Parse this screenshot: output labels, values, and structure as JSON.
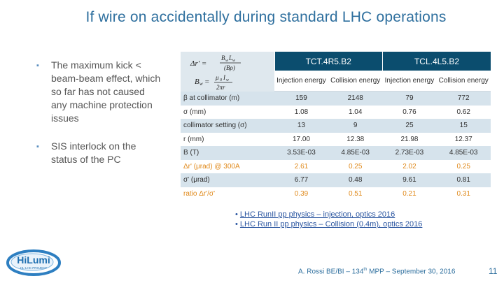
{
  "title": "If wire on accidentally during standard LHC operations",
  "bullets": [
    "The maximum kick < beam-beam effect, which so far has not caused any machine protection issues",
    "SIS interlock on the status of the PC"
  ],
  "formula_text": "Δr' = B_w L_w / (Bρ)   ;   B_w = μ0 I_w / (2πr)",
  "table": {
    "group_headers": [
      "TCT.4R5.B2",
      "TCL.4L5.B2"
    ],
    "sub_headers": [
      "Injection energy",
      "Collision energy",
      "Injection energy",
      "Collision energy"
    ],
    "rows": [
      {
        "label": "β at collimator (m)",
        "values": [
          "159",
          "2148",
          "79",
          "772"
        ]
      },
      {
        "label": "σ (mm)",
        "values": [
          "1.08",
          "1.04",
          "0.76",
          "0.62"
        ]
      },
      {
        "label": "collimator setting (σ)",
        "values": [
          "13",
          "9",
          "25",
          "15"
        ]
      },
      {
        "label": "r (mm)",
        "values": [
          "17.00",
          "12.38",
          "21.98",
          "12.37"
        ]
      },
      {
        "label": "B (T)",
        "values": [
          "3.53E-03",
          "4.85E-03",
          "2.73E-03",
          "4.85E-03"
        ]
      },
      {
        "label": "Δr' (μrad) @ 300A",
        "values": [
          "2.61",
          "0.25",
          "2.02",
          "0.25"
        ]
      },
      {
        "label": "σ' (μrad)",
        "values": [
          "6.77",
          "0.48",
          "9.61",
          "0.81"
        ]
      },
      {
        "label": "ratio Δr'/σ'",
        "values": [
          "0.39",
          "0.51",
          "0.21",
          "0.31"
        ]
      }
    ]
  },
  "links": [
    {
      "text": "LHC RunII pp physics – injection, optics 2016"
    },
    {
      "text": "LHC Run II pp physics – Collision (0.4m), optics 2016"
    }
  ],
  "footer": {
    "author": "A. Rossi BE/BI – 134",
    "sup": "th",
    "rest": " MPP – September 30, 2016"
  },
  "page_number": "11",
  "logo": {
    "name": "HiLumi",
    "sub": "HL-LHC PROJECT"
  },
  "colors": {
    "accent": "#2e6f9e",
    "header_bg": "#0b4d6e",
    "row_alt": "#d6e3ec",
    "highlight": "#e08a1c"
  }
}
